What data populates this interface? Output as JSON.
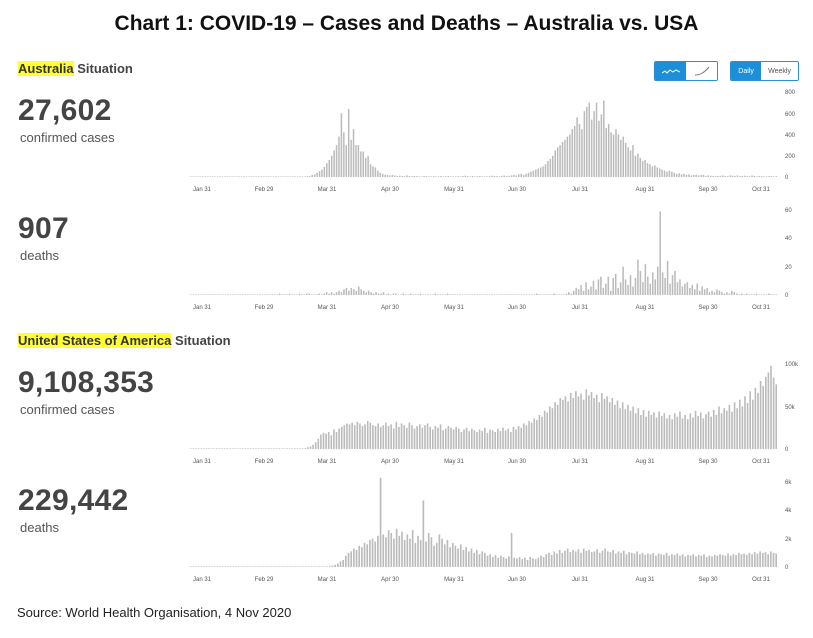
{
  "title": "Chart 1: COVID-19 – Cases and Deaths – Australia vs. USA",
  "source": "Source: World Health Organisation, 4 Nov 2020",
  "controls": {
    "chart_icons": [
      "bar-chart-icon",
      "line-chart-icon"
    ],
    "daily_label": "Daily",
    "weekly_label": "Weekly"
  },
  "australia": {
    "heading_highlight": "Australia",
    "heading_rest": " Situation",
    "cases_total": "27,602",
    "cases_label": "confirmed cases",
    "deaths_total": "907",
    "deaths_label": "deaths"
  },
  "usa": {
    "heading_highlight": "United States of America",
    "heading_rest": " Situation",
    "cases_total": "9,108,353",
    "cases_label": "confirmed cases",
    "deaths_total": "229,442",
    "deaths_label": "deaths"
  },
  "colors": {
    "bar": "#bbbbbb",
    "highlight": "#ffff33",
    "accent": "#1d8fd8"
  },
  "chart_data": [
    {
      "type": "bar",
      "title": "Australia confirmed cases (daily)",
      "x_ticks": [
        "Jan 31",
        "Feb 29",
        "Mar 31",
        "Apr 30",
        "May 31",
        "Jun 30",
        "Jul 31",
        "Aug 31",
        "Sep 30",
        "Oct 31"
      ],
      "y_ticks": [
        "800",
        "600",
        "400",
        "200",
        "0"
      ],
      "ylim": [
        0,
        800
      ],
      "x_start": "2020-01-25",
      "values": [
        0,
        1,
        0,
        0,
        1,
        0,
        0,
        1,
        0,
        0,
        0,
        0,
        0,
        0,
        0,
        0,
        0,
        0,
        0,
        0,
        0,
        0,
        0,
        0,
        0,
        0,
        0,
        0,
        0,
        0,
        0,
        0,
        0,
        0,
        0,
        0,
        0,
        0,
        0,
        0,
        0,
        0,
        1,
        2,
        1,
        3,
        2,
        5,
        8,
        10,
        20,
        25,
        40,
        55,
        70,
        95,
        130,
        160,
        200,
        250,
        300,
        380,
        600,
        420,
        300,
        640,
        350,
        450,
        300,
        300,
        240,
        240,
        180,
        200,
        120,
        100,
        90,
        60,
        40,
        30,
        20,
        20,
        15,
        20,
        15,
        10,
        12,
        10,
        8,
        15,
        10,
        8,
        10,
        8,
        6,
        5,
        10,
        8,
        5,
        6,
        8,
        5,
        5,
        10,
        5,
        8,
        10,
        6,
        5,
        5,
        8,
        5,
        10,
        12,
        8,
        5,
        10,
        5,
        8,
        10,
        6,
        5,
        5,
        8,
        12,
        10,
        8,
        5,
        10,
        15,
        10,
        12,
        15,
        20,
        15,
        25,
        30,
        20,
        30,
        40,
        50,
        60,
        70,
        80,
        90,
        100,
        120,
        150,
        170,
        200,
        250,
        280,
        300,
        330,
        350,
        380,
        400,
        450,
        480,
        560,
        500,
        450,
        620,
        660,
        700,
        540,
        620,
        700,
        530,
        590,
        720,
        460,
        500,
        420,
        400,
        450,
        400,
        350,
        380,
        320,
        280,
        250,
        300,
        200,
        220,
        180,
        150,
        160,
        130,
        120,
        100,
        110,
        90,
        80,
        70,
        60,
        50,
        60,
        50,
        40,
        30,
        35,
        25,
        30,
        20,
        25,
        15,
        20,
        20,
        15,
        18,
        20,
        10,
        15,
        12,
        10,
        8,
        10,
        12,
        15,
        10,
        8,
        15,
        12,
        10,
        15,
        8,
        10,
        12,
        10,
        8,
        15,
        10,
        5,
        10,
        8,
        6,
        5,
        8,
        10,
        5,
        8
      ]
    },
    {
      "type": "bar",
      "title": "Australia deaths (daily)",
      "x_ticks": [
        "Jan 31",
        "Feb 29",
        "Mar 31",
        "Apr 30",
        "May 31",
        "Jun 30",
        "Jul 31",
        "Aug 31",
        "Sep 30",
        "Oct 31"
      ],
      "y_ticks": [
        "60",
        "40",
        "20",
        "0"
      ],
      "ylim": [
        0,
        60
      ],
      "x_start": "2020-01-25",
      "values": [
        0,
        0,
        0,
        0,
        0,
        0,
        0,
        0,
        0,
        0,
        0,
        0,
        0,
        0,
        0,
        0,
        0,
        0,
        0,
        0,
        0,
        0,
        0,
        0,
        0,
        0,
        0,
        0,
        0,
        0,
        0,
        0,
        0,
        0,
        0,
        0,
        1,
        0,
        0,
        0,
        1,
        0,
        0,
        0,
        1,
        0,
        0,
        1,
        1,
        0,
        0,
        0,
        1,
        0,
        1,
        2,
        1,
        2,
        1,
        2,
        3,
        2,
        4,
        5,
        3,
        5,
        4,
        3,
        6,
        4,
        3,
        2,
        3,
        2,
        1,
        2,
        1,
        1,
        2,
        0,
        1,
        0,
        1,
        1,
        0,
        0,
        1,
        0,
        0,
        1,
        0,
        0,
        0,
        1,
        0,
        0,
        0,
        0,
        0,
        1,
        0,
        0,
        0,
        0,
        1,
        0,
        0,
        0,
        0,
        0,
        0,
        0,
        0,
        0,
        0,
        0,
        0,
        0,
        0,
        0,
        0,
        0,
        0,
        0,
        0,
        0,
        0,
        0,
        0,
        0,
        0,
        0,
        0,
        0,
        0,
        0,
        0,
        0,
        0,
        0,
        1,
        0,
        0,
        0,
        0,
        0,
        0,
        1,
        0,
        0,
        0,
        0,
        1,
        2,
        1,
        3,
        5,
        4,
        7,
        3,
        9,
        4,
        6,
        10,
        4,
        11,
        13,
        5,
        8,
        13,
        3,
        12,
        15,
        5,
        9,
        20,
        11,
        7,
        14,
        6,
        12,
        25,
        17,
        9,
        22,
        13,
        8,
        16,
        11,
        20,
        59,
        16,
        12,
        24,
        8,
        14,
        17,
        9,
        11,
        6,
        8,
        9,
        5,
        7,
        4,
        8,
        3,
        6,
        4,
        5,
        2,
        3,
        2,
        4,
        3,
        2,
        1,
        2,
        1,
        3,
        2,
        1,
        0,
        1,
        0,
        1,
        0,
        0,
        0,
        1,
        0,
        0,
        0,
        0,
        1,
        0,
        0,
        0
      ]
    },
    {
      "type": "bar",
      "title": "United States of America confirmed cases (daily)",
      "x_ticks": [
        "Jan 31",
        "Feb 29",
        "Mar 31",
        "Apr 30",
        "May 31",
        "Jun 30",
        "Jul 31",
        "Aug 31",
        "Sep 30",
        "Oct 31"
      ],
      "y_ticks": [
        "100k",
        "50k",
        "0"
      ],
      "ylim": [
        0,
        100000
      ],
      "x_start": "2020-01-25",
      "values": [
        0,
        0,
        0,
        0,
        0,
        0,
        0,
        0,
        0,
        0,
        0,
        0,
        0,
        0,
        0,
        0,
        0,
        0,
        0,
        0,
        0,
        0,
        0,
        0,
        0,
        0,
        0,
        0,
        0,
        0,
        0,
        0,
        0,
        0,
        0,
        0,
        0,
        0,
        0,
        0,
        100,
        200,
        300,
        500,
        1000,
        2000,
        3000,
        5000,
        8000,
        12000,
        17000,
        19000,
        18000,
        20000,
        16000,
        23000,
        20000,
        24000,
        26000,
        28000,
        30000,
        29000,
        31000,
        28000,
        32000,
        30000,
        27000,
        29000,
        33000,
        31000,
        28000,
        27000,
        30000,
        26000,
        28000,
        31000,
        27000,
        29000,
        24000,
        32000,
        26000,
        30000,
        28000,
        25000,
        31000,
        28000,
        24000,
        27000,
        29000,
        25000,
        28000,
        30000,
        26000,
        23000,
        27000,
        25000,
        29000,
        22000,
        24000,
        27000,
        25000,
        23000,
        26000,
        24000,
        20000,
        23000,
        25000,
        21000,
        24000,
        22000,
        20000,
        23000,
        21000,
        25000,
        19000,
        23000,
        22000,
        20000,
        24000,
        21000,
        25000,
        22000,
        24000,
        20000,
        26000,
        23000,
        27000,
        25000,
        30000,
        28000,
        33000,
        31000,
        36000,
        34000,
        40000,
        38000,
        45000,
        43000,
        50000,
        48000,
        55000,
        52000,
        60000,
        58000,
        62000,
        56000,
        66000,
        60000,
        68000,
        62000,
        65000,
        58000,
        70000,
        63000,
        67000,
        60000,
        64000,
        55000,
        66000,
        59000,
        62000,
        55000,
        60000,
        52000,
        57000,
        48000,
        55000,
        47000,
        52000,
        45000,
        50000,
        42000,
        48000,
        40000,
        46000,
        38000,
        45000,
        40000,
        43000,
        37000,
        44000,
        39000,
        42000,
        36000,
        40000,
        35000,
        42000,
        38000,
        44000,
        36000,
        40000,
        35000,
        42000,
        37000,
        45000,
        39000,
        43000,
        36000,
        41000,
        44000,
        38000,
        46000,
        40000,
        50000,
        42000,
        48000,
        45000,
        52000,
        44000,
        55000,
        48000,
        58000,
        50000,
        62000,
        54000,
        68000,
        58000,
        72000,
        66000,
        80000,
        74000,
        85000,
        90000,
        98000,
        84000,
        76000
      ]
    },
    {
      "type": "bar",
      "title": "United States of America deaths (daily)",
      "x_ticks": [
        "Jan 31",
        "Feb 29",
        "Mar 31",
        "Apr 30",
        "May 31",
        "Jun 30",
        "Jul 31",
        "Aug 31",
        "Sep 30",
        "Oct 31"
      ],
      "y_ticks": [
        "6k",
        "4k",
        "2k",
        "0"
      ],
      "ylim": [
        0,
        6000
      ],
      "x_start": "2020-01-25",
      "values": [
        0,
        0,
        0,
        0,
        0,
        0,
        0,
        0,
        0,
        0,
        0,
        0,
        0,
        0,
        0,
        0,
        0,
        0,
        0,
        0,
        0,
        0,
        0,
        0,
        0,
        0,
        0,
        0,
        0,
        0,
        0,
        0,
        0,
        0,
        0,
        0,
        0,
        0,
        0,
        0,
        0,
        0,
        0,
        0,
        0,
        0,
        0,
        0,
        5,
        10,
        20,
        40,
        60,
        100,
        150,
        250,
        400,
        500,
        800,
        1000,
        1100,
        1300,
        1200,
        1500,
        1400,
        1700,
        1600,
        1900,
        2000,
        1800,
        2200,
        6300,
        2300,
        2100,
        2600,
        2400,
        2000,
        2700,
        2200,
        2500,
        1900,
        2300,
        2000,
        2600,
        1700,
        2200,
        1900,
        4700,
        1800,
        2400,
        2100,
        1500,
        1700,
        2300,
        2000,
        1600,
        1900,
        1400,
        1700,
        1500,
        1300,
        1600,
        1200,
        1400,
        1100,
        1300,
        1000,
        1200,
        900,
        1100,
        1000,
        800,
        900,
        700,
        850,
        650,
        800,
        700,
        600,
        750,
        2400,
        650,
        600,
        700,
        550,
        650,
        500,
        700,
        600,
        550,
        650,
        800,
        700,
        900,
        1000,
        850,
        1100,
        950,
        1200,
        1000,
        1150,
        1300,
        1050,
        1200,
        1100,
        1250,
        1000,
        1300,
        1150,
        1200,
        1050,
        1100,
        1250,
        1000,
        1150,
        1300,
        1100,
        1050,
        1200,
        950,
        1100,
        1000,
        1150,
        900,
        1050,
        1000,
        950,
        1100,
        900,
        1000,
        850,
        950,
        900,
        1000,
        800,
        950,
        900,
        850,
        1000,
        800,
        900,
        850,
        950,
        800,
        900,
        750,
        850,
        800,
        900,
        750,
        850,
        800,
        900,
        700,
        800,
        750,
        850,
        800,
        900,
        850,
        800,
        950,
        800,
        900,
        850,
        1000,
        900,
        950,
        850,
        1000,
        900,
        1050,
        950,
        1100,
        1000,
        1050,
        900,
        1100,
        1000,
        950
      ]
    }
  ]
}
